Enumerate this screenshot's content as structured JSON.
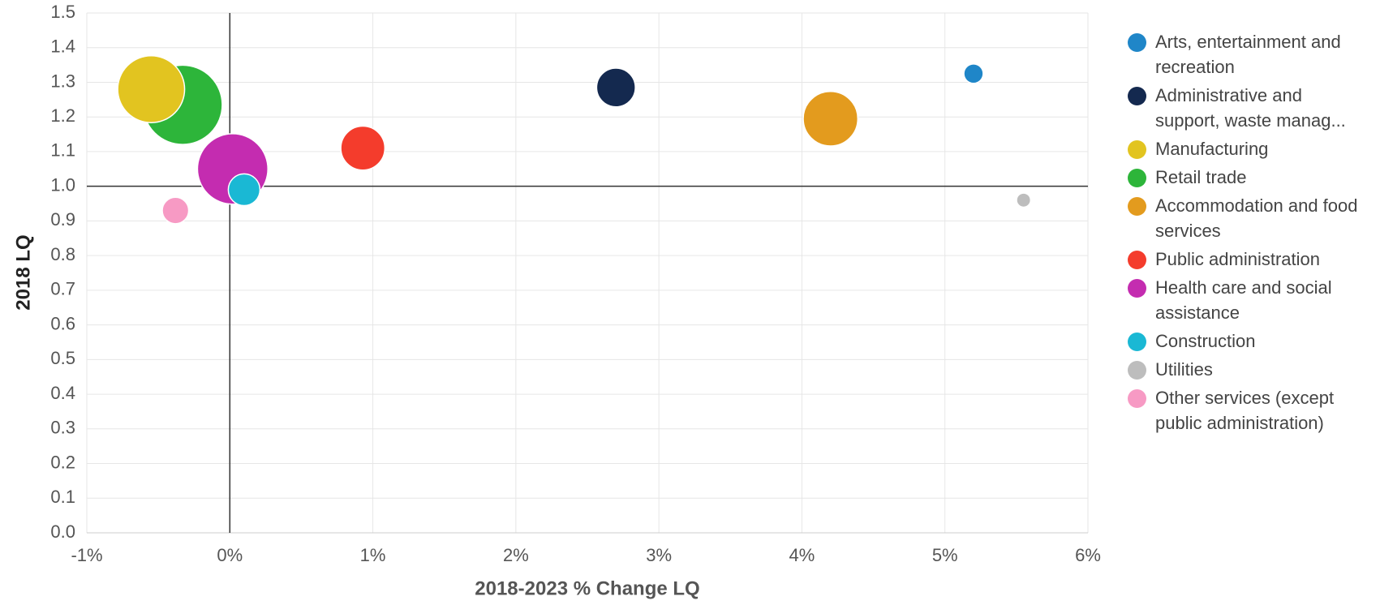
{
  "chart_data": {
    "type": "bubble",
    "x_label": "2018-2023 % Change LQ",
    "y_label": "2018 LQ",
    "xlim": [
      -1,
      6
    ],
    "xticks": [
      {
        "value": -1,
        "label": "-1%"
      },
      {
        "value": 0,
        "label": "0%"
      },
      {
        "value": 1,
        "label": "1%"
      },
      {
        "value": 2,
        "label": "2%"
      },
      {
        "value": 3,
        "label": "3%"
      },
      {
        "value": 4,
        "label": "4%"
      },
      {
        "value": 5,
        "label": "5%"
      },
      {
        "value": 6,
        "label": "6%"
      }
    ],
    "ylim": [
      0,
      1.5
    ],
    "yticks": [
      {
        "value": 0,
        "label": "0.0"
      },
      0.1,
      0.2,
      0.3,
      0.4,
      0.5,
      0.6,
      0.7,
      0.8,
      0.9,
      {
        "value": 1,
        "label": "1.0"
      },
      1.1,
      1.2,
      1.3,
      1.4,
      1.5
    ],
    "grid": true,
    "xref": 0,
    "yref": 1,
    "legend": "right",
    "series": [
      {
        "name": "Arts, entertainment and recreation",
        "color": "#1f86c8",
        "x": [
          5.2
        ],
        "values": [
          1.325
        ],
        "sizes": [
          121
        ]
      },
      {
        "name": "Administrative and support, waste manag...",
        "color": "#14294f",
        "x": [
          2.7
        ],
        "values": [
          1.285
        ],
        "sizes": [
          484
        ]
      },
      {
        "name": "Manufacturing",
        "color": "#e2c420",
        "x": [
          -0.55
        ],
        "values": [
          1.28
        ],
        "sizes": [
          1444
        ]
      },
      {
        "name": "Retail trade",
        "color": "#2db53a",
        "x": [
          -0.33
        ],
        "values": [
          1.235
        ],
        "sizes": [
          2025
        ]
      },
      {
        "name": "Accommodation and food services",
        "color": "#e39b1e",
        "x": [
          4.2
        ],
        "values": [
          1.195
        ],
        "sizes": [
          961
        ]
      },
      {
        "name": "Public administration",
        "color": "#f43c2c",
        "x": [
          0.93
        ],
        "values": [
          1.11
        ],
        "sizes": [
          625
        ]
      },
      {
        "name": "Health care and social assistance",
        "color": "#c42cb0",
        "x": [
          0.02
        ],
        "values": [
          1.05
        ],
        "sizes": [
          1600
        ]
      },
      {
        "name": "Construction",
        "color": "#1ab8d4",
        "x": [
          0.1
        ],
        "values": [
          0.99
        ],
        "sizes": [
          324
        ]
      },
      {
        "name": "Utilities",
        "color": "#bdbdbd",
        "x": [
          5.55
        ],
        "values": [
          0.96
        ],
        "sizes": [
          64
        ]
      },
      {
        "name": "Other services (except public administration)",
        "color": "#f79ac4",
        "x": [
          -0.38
        ],
        "values": [
          0.93
        ],
        "sizes": [
          225
        ]
      }
    ]
  }
}
